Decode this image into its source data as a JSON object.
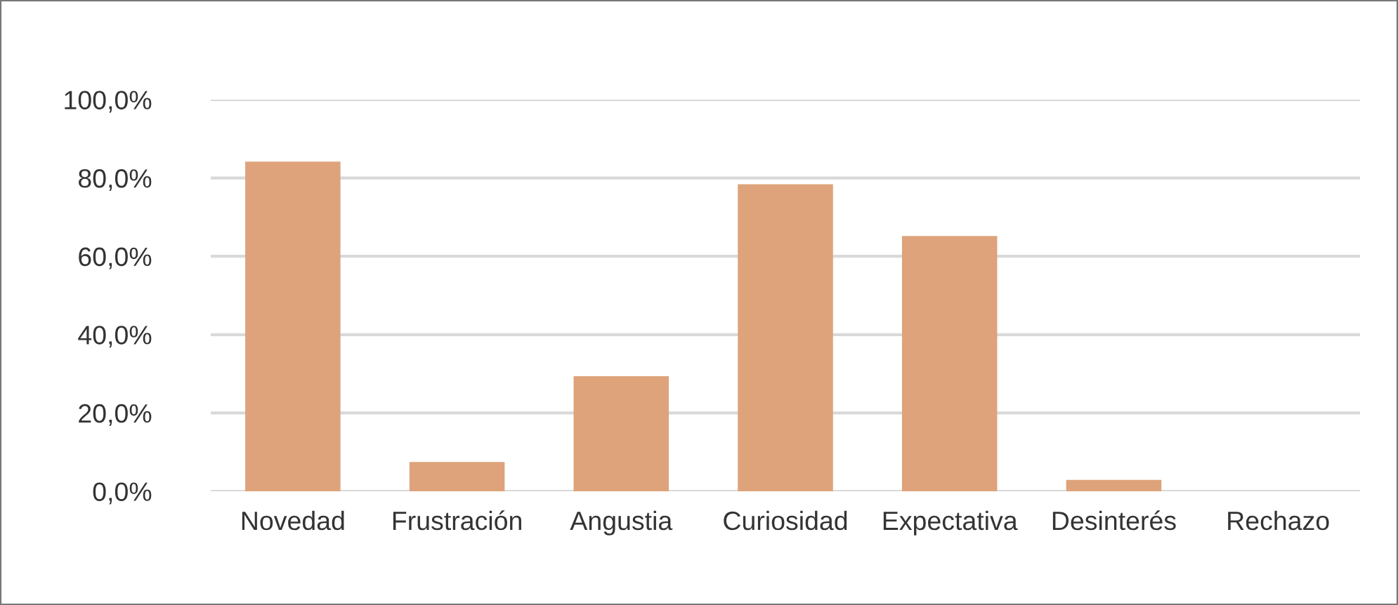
{
  "chart_data": {
    "type": "bar",
    "categories": [
      "Novedad",
      "Frustración",
      "Angustia",
      "Curiosidad",
      "Expectativa",
      "Desinterés",
      "Rechazo"
    ],
    "values": [
      84.2,
      7.5,
      29.4,
      78.4,
      65.2,
      2.9,
      0
    ],
    "color": "#dea37a",
    "ylim": [
      0,
      100
    ],
    "yticks": [
      {
        "value": 0,
        "label": "0,0%"
      },
      {
        "value": 20,
        "label": "20,0%"
      },
      {
        "value": 40,
        "label": "40,0%"
      },
      {
        "value": 60,
        "label": "60,0%"
      },
      {
        "value": 80,
        "label": "80,0%"
      },
      {
        "value": 100,
        "label": "100,0%"
      }
    ],
    "grid": "y",
    "legend": false
  }
}
